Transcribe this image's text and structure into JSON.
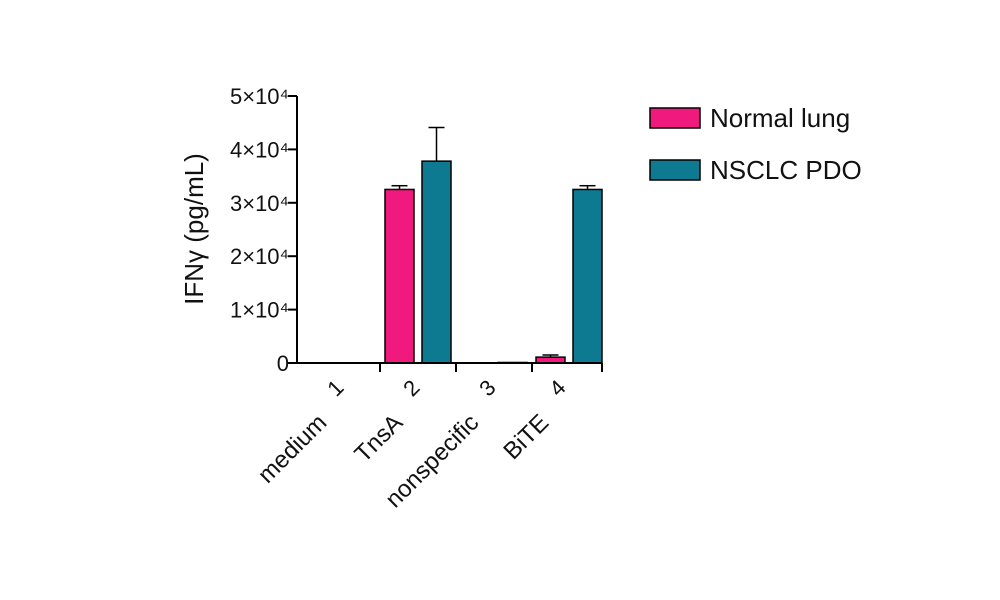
{
  "chart_data": {
    "type": "bar",
    "title": "",
    "ylabel": "IFNγ (pg/mL)",
    "xlabel": "",
    "ylim": [
      0,
      50000
    ],
    "ytick_values": [
      0,
      10000,
      20000,
      30000,
      40000,
      50000
    ],
    "ytick_labels": [
      "0",
      "1×10⁴",
      "2×10⁴",
      "3×10⁴",
      "4×10⁴",
      "5×10⁴"
    ],
    "category_numbers": [
      "1",
      "2",
      "3",
      "4"
    ],
    "categories": [
      "medium",
      "TnsA",
      "nonspecific",
      "BiTE"
    ],
    "legend_position": "top-right",
    "grid": false,
    "series": [
      {
        "name": "Normal lung",
        "color": "#f0197d",
        "values": [
          0,
          32500,
          0,
          1100
        ],
        "errors": [
          0,
          700,
          0,
          400
        ]
      },
      {
        "name": "NSCLC PDO",
        "color": "#0e7a91",
        "values": [
          0,
          37800,
          100,
          32500
        ],
        "errors": [
          0,
          6300,
          0,
          700
        ]
      }
    ]
  }
}
